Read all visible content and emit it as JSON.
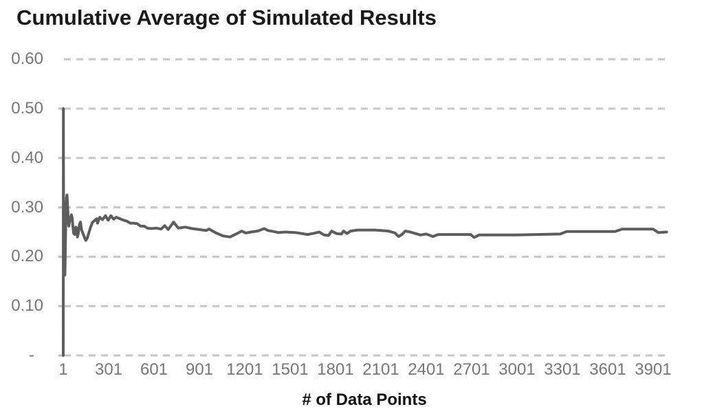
{
  "page": {
    "title": "Cumulative Average of Simulated Results"
  },
  "chart_data": {
    "type": "line",
    "title": "Cumulative Average of Simulated Results",
    "xlabel": "# of Data Points",
    "ylabel": "",
    "legend_position": "none",
    "grid": "horizontal-dashed",
    "xlim": [
      1,
      4000
    ],
    "ylim": [
      0,
      0.6
    ],
    "x_ticks": [
      {
        "label": "1",
        "value": 1
      },
      {
        "label": "301",
        "value": 301
      },
      {
        "label": "601",
        "value": 601
      },
      {
        "label": "901",
        "value": 901
      },
      {
        "label": "1201",
        "value": 1201
      },
      {
        "label": "1501",
        "value": 1501
      },
      {
        "label": "1801",
        "value": 1801
      },
      {
        "label": "2101",
        "value": 2101
      },
      {
        "label": "2401",
        "value": 2401
      },
      {
        "label": "2701",
        "value": 2701
      },
      {
        "label": "3001",
        "value": 3001
      },
      {
        "label": "3301",
        "value": 3301
      },
      {
        "label": "3601",
        "value": 3601
      },
      {
        "label": "3901",
        "value": 3901
      }
    ],
    "y_ticks": [
      {
        "label": "0.60",
        "value": 0.6
      },
      {
        "label": "0.50",
        "value": 0.5
      },
      {
        "label": "0.40",
        "value": 0.4
      },
      {
        "label": "0.30",
        "value": 0.3
      },
      {
        "label": "0.20",
        "value": 0.2
      },
      {
        "label": "0.10",
        "value": 0.1
      },
      {
        "label": "-",
        "value": 0
      }
    ],
    "series": [
      {
        "name": "cumulative-average",
        "converges_to": 0.25,
        "points": [
          [
            1,
            0.0
          ],
          [
            2,
            0.5
          ],
          [
            3,
            0.333
          ],
          [
            4,
            0.25
          ],
          [
            5,
            0.2
          ],
          [
            6,
            0.3
          ],
          [
            7,
            0.27
          ],
          [
            8,
            0.24
          ],
          [
            10,
            0.2
          ],
          [
            12,
            0.163
          ],
          [
            14,
            0.2
          ],
          [
            16,
            0.24
          ],
          [
            18,
            0.27
          ],
          [
            20,
            0.3
          ],
          [
            23,
            0.32
          ],
          [
            26,
            0.325
          ],
          [
            30,
            0.3
          ],
          [
            34,
            0.27
          ],
          [
            38,
            0.262
          ],
          [
            42,
            0.27
          ],
          [
            48,
            0.278
          ],
          [
            55,
            0.285
          ],
          [
            60,
            0.278
          ],
          [
            65,
            0.26
          ],
          [
            70,
            0.247
          ],
          [
            77,
            0.245
          ],
          [
            84,
            0.26
          ],
          [
            90,
            0.258
          ],
          [
            95,
            0.24
          ],
          [
            102,
            0.25
          ],
          [
            108,
            0.265
          ],
          [
            115,
            0.27
          ],
          [
            122,
            0.255
          ],
          [
            130,
            0.248
          ],
          [
            140,
            0.24
          ],
          [
            150,
            0.233
          ],
          [
            160,
            0.238
          ],
          [
            172,
            0.25
          ],
          [
            182,
            0.26
          ],
          [
            195,
            0.27
          ],
          [
            210,
            0.274
          ],
          [
            222,
            0.277
          ],
          [
            228,
            0.268
          ],
          [
            242,
            0.28
          ],
          [
            260,
            0.275
          ],
          [
            280,
            0.283
          ],
          [
            298,
            0.274
          ],
          [
            316,
            0.283
          ],
          [
            334,
            0.276
          ],
          [
            352,
            0.28
          ],
          [
            375,
            0.277
          ],
          [
            400,
            0.274
          ],
          [
            422,
            0.272
          ],
          [
            445,
            0.268
          ],
          [
            468,
            0.268
          ],
          [
            490,
            0.267
          ],
          [
            512,
            0.262
          ],
          [
            535,
            0.262
          ],
          [
            558,
            0.258
          ],
          [
            582,
            0.257
          ],
          [
            618,
            0.258
          ],
          [
            648,
            0.256
          ],
          [
            672,
            0.263
          ],
          [
            695,
            0.255
          ],
          [
            730,
            0.27
          ],
          [
            762,
            0.258
          ],
          [
            808,
            0.26
          ],
          [
            853,
            0.257
          ],
          [
            900,
            0.255
          ],
          [
            945,
            0.253
          ],
          [
            966,
            0.256
          ],
          [
            1012,
            0.248
          ],
          [
            1058,
            0.242
          ],
          [
            1104,
            0.24
          ],
          [
            1150,
            0.247
          ],
          [
            1180,
            0.252
          ],
          [
            1208,
            0.248
          ],
          [
            1240,
            0.25
          ],
          [
            1285,
            0.252
          ],
          [
            1330,
            0.257
          ],
          [
            1355,
            0.253
          ],
          [
            1376,
            0.252
          ],
          [
            1422,
            0.249
          ],
          [
            1468,
            0.25
          ],
          [
            1536,
            0.249
          ],
          [
            1616,
            0.245
          ],
          [
            1650,
            0.247
          ],
          [
            1694,
            0.25
          ],
          [
            1726,
            0.244
          ],
          [
            1754,
            0.243
          ],
          [
            1776,
            0.252
          ],
          [
            1808,
            0.247
          ],
          [
            1840,
            0.246
          ],
          [
            1854,
            0.252
          ],
          [
            1877,
            0.247
          ],
          [
            1900,
            0.252
          ],
          [
            1945,
            0.254
          ],
          [
            2058,
            0.254
          ],
          [
            2104,
            0.253
          ],
          [
            2150,
            0.252
          ],
          [
            2195,
            0.248
          ],
          [
            2218,
            0.241
          ],
          [
            2240,
            0.245
          ],
          [
            2263,
            0.252
          ],
          [
            2295,
            0.25
          ],
          [
            2330,
            0.247
          ],
          [
            2363,
            0.244
          ],
          [
            2400,
            0.246
          ],
          [
            2445,
            0.241
          ],
          [
            2480,
            0.245
          ],
          [
            2580,
            0.245
          ],
          [
            2695,
            0.245
          ],
          [
            2718,
            0.239
          ],
          [
            2750,
            0.244
          ],
          [
            2990,
            0.244
          ],
          [
            3287,
            0.246
          ],
          [
            3330,
            0.251
          ],
          [
            3650,
            0.251
          ],
          [
            3695,
            0.256
          ],
          [
            3900,
            0.256
          ],
          [
            3935,
            0.249
          ],
          [
            3990,
            0.25
          ]
        ]
      }
    ],
    "colors": {
      "line": "#5d5d5d",
      "grid": "#c7c7c7",
      "tick": "#bdbdbd",
      "tick_label": "#767676",
      "title": "#1a1a1a",
      "axis_title": "#111111",
      "background": "#ffffff"
    }
  }
}
